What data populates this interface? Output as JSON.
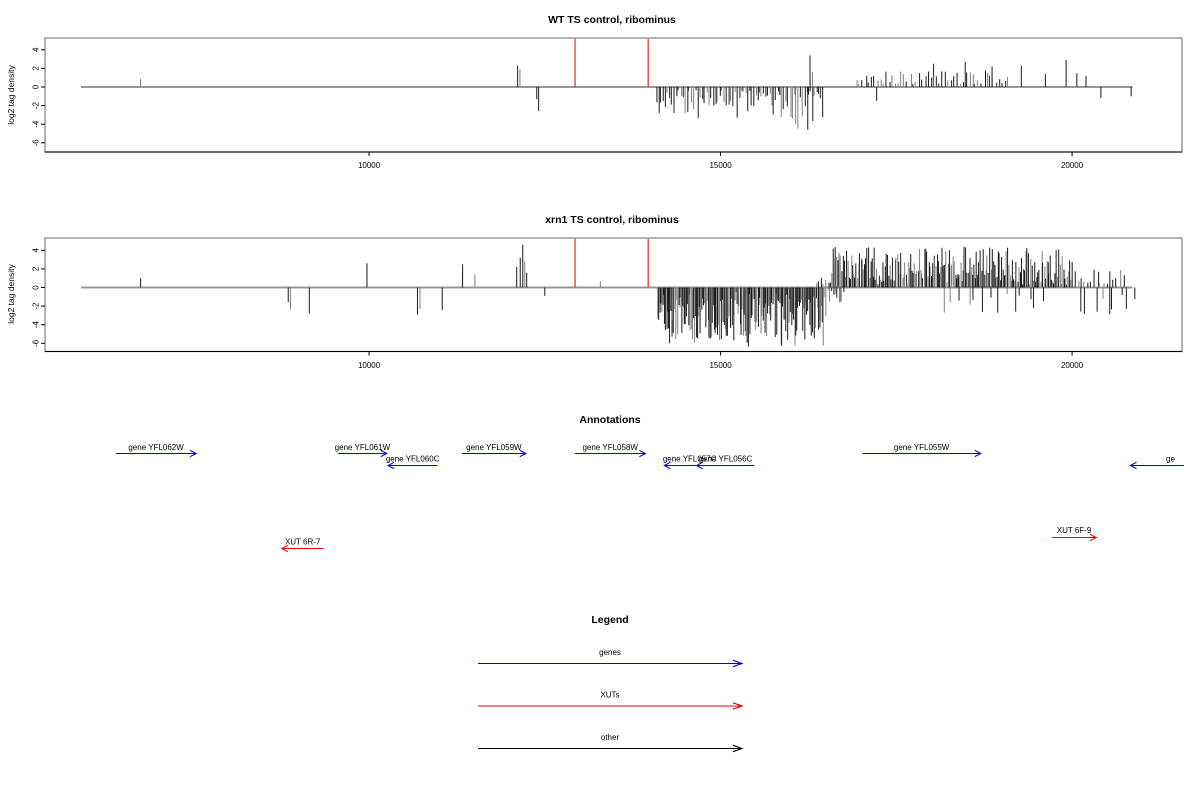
{
  "chart_data": {
    "type": "bar",
    "description": "Genome browser style strand-specific log2 tag density tracks with gene/XUT annotations",
    "colors": {
      "genes": "#0000ee",
      "xuts": "#ee0000",
      "markers": "#ee2222",
      "bars": "#1a1a1a",
      "bars_alt": "#808080",
      "baseline": "#979797"
    },
    "panels": [
      {
        "title": "WT TS control, ribominus",
        "ylabel": "log2 tag density",
        "yticks": [
          4,
          2,
          0,
          -2,
          -4,
          -6
        ],
        "xticks": [
          10000,
          15000,
          20000
        ],
        "xlim": [
          5390,
          21640
        ],
        "ylim": [
          -6.9,
          5.4
        ],
        "baseline": [
          5900,
          20860
        ],
        "marker_lines": [
          12930,
          13970
        ],
        "bars": {
          "explicit": [
            [
              6750,
              0.9,
              "g"
            ],
            [
              12113,
              2.3,
              "k"
            ],
            [
              12146,
              1.9,
              "g"
            ],
            [
              12385,
              -1.3,
              "k"
            ],
            [
              12412,
              -2.6,
              "k"
            ],
            [
              16240,
              -4.6,
              "k"
            ],
            [
              16272,
              3.4,
              "k"
            ],
            [
              16306,
              1.6,
              "g"
            ],
            [
              17220,
              -1.5,
              "k"
            ],
            [
              18030,
              2.5,
              "k"
            ],
            [
              18480,
              2.7,
              "k"
            ],
            [
              18862,
              2.2,
              "k"
            ],
            [
              19278,
              2.3,
              "k"
            ],
            [
              19620,
              1.4,
              "k"
            ],
            [
              19915,
              2.9,
              "k"
            ],
            [
              20068,
              1.5,
              "k"
            ],
            [
              20198,
              1.2,
              "k"
            ],
            [
              20410,
              -1.2,
              "k"
            ],
            [
              20840,
              -1.0,
              "k"
            ]
          ],
          "regions": [
            {
              "from": 14080,
              "to": 15310,
              "sign": -1,
              "n": 40,
              "hmin": 0.3,
              "hmax": 3.4,
              "skew": 1.3,
              "seed": 11
            },
            {
              "from": 15310,
              "to": 16470,
              "sign": -1,
              "n": 40,
              "hmin": 0.4,
              "hmax": 4.7,
              "skew": 1.5,
              "seed": 12
            },
            {
              "from": 16920,
              "to": 19110,
              "sign": 1,
              "n": 52,
              "hmin": 0.3,
              "hmax": 1.8,
              "skew": 1.2,
              "seed": 13
            }
          ]
        }
      },
      {
        "title": "xrn1 TS control, ribominus",
        "ylabel": "log2 tag density",
        "yticks": [
          4,
          2,
          0,
          -2,
          -4,
          -6
        ],
        "xticks": [
          10000,
          15000,
          20000
        ],
        "xlim": [
          5390,
          21640
        ],
        "ylim": [
          -6.9,
          5.4
        ],
        "baseline": [
          5900,
          20860
        ],
        "marker_lines": [
          12930,
          13970
        ],
        "bars": {
          "explicit": [
            [
              6750,
              1.0,
              "k"
            ],
            [
              8850,
              -1.6,
              "k"
            ],
            [
              8882,
              -2.4,
              "g"
            ],
            [
              9150,
              -2.8,
              "k"
            ],
            [
              9970,
              2.6,
              "k"
            ],
            [
              10688,
              -2.9,
              "k"
            ],
            [
              10724,
              -2.3,
              "g"
            ],
            [
              11040,
              -2.4,
              "k"
            ],
            [
              11330,
              2.5,
              "k"
            ],
            [
              11505,
              1.4,
              "g"
            ],
            [
              12100,
              2.2,
              "k"
            ],
            [
              12150,
              3.2,
              "k"
            ],
            [
              12186,
              4.6,
              "k"
            ],
            [
              12214,
              2.8,
              "g"
            ],
            [
              12242,
              1.6,
              "k"
            ],
            [
              12500,
              -0.9,
              "k"
            ],
            [
              13290,
              0.7,
              "g"
            ]
          ],
          "regions": [
            {
              "from": 14100,
              "to": 16500,
              "sign": -1,
              "n": 170,
              "hmin": 0.4,
              "hmax": 6.4,
              "skew": 0.9,
              "seed": 21
            },
            {
              "from": 16350,
              "to": 16560,
              "sign": 1,
              "n": 6,
              "hmin": 0.3,
              "hmax": 1.5,
              "skew": 1.2,
              "seed": 22
            },
            {
              "from": 16520,
              "to": 16760,
              "sign": -1,
              "n": 9,
              "hmin": 0.3,
              "hmax": 1.8,
              "skew": 1.2,
              "seed": 27
            },
            {
              "from": 16560,
              "to": 20010,
              "sign": 1,
              "n": 200,
              "hmin": 0.3,
              "hmax": 4.4,
              "skew": 1.05,
              "seed": 23
            },
            {
              "from": 18150,
              "to": 19660,
              "sign": -1,
              "n": 14,
              "hmin": 0.5,
              "hmax": 2.8,
              "skew": 1.2,
              "seed": 24
            },
            {
              "from": 20020,
              "to": 20750,
              "sign": 1,
              "n": 16,
              "hmin": 0.3,
              "hmax": 2.1,
              "skew": 1.2,
              "seed": 25
            },
            {
              "from": 20080,
              "to": 20940,
              "sign": -1,
              "n": 9,
              "hmin": 0.7,
              "hmax": 3.4,
              "skew": 1.2,
              "seed": 26
            }
          ]
        }
      }
    ],
    "annotations": {
      "title": "Annotations",
      "genes": [
        {
          "label": "gene YFL062W",
          "from": 6400,
          "to": 7540,
          "strand": "+",
          "row": 0
        },
        {
          "label": "gene YFL061W",
          "from": 9560,
          "to": 10250,
          "strand": "+",
          "row": 0
        },
        {
          "label": "gene YFL060C",
          "from": 10270,
          "to": 10970,
          "strand": "-",
          "row": 1
        },
        {
          "label": "gene YFL059W",
          "from": 11320,
          "to": 12230,
          "strand": "+",
          "row": 0
        },
        {
          "label": "gene YFL058W",
          "from": 12930,
          "to": 13930,
          "strand": "+",
          "row": 0
        },
        {
          "label": "gene YFL057C",
          "from": 14200,
          "to": 14920,
          "strand": "-",
          "row": 1
        },
        {
          "label": "gene YFL056C",
          "from": 14660,
          "to": 15480,
          "strand": "-",
          "row": 1
        },
        {
          "label": "gene YFL055W",
          "from": 17020,
          "to": 18700,
          "strand": "+",
          "row": 0
        },
        {
          "label": "ge",
          "from": 20830,
          "to": 21590,
          "strand": "-",
          "row": 1,
          "label_at": 21400
        }
      ],
      "xuts": [
        {
          "label": "XUT 6R-7",
          "from": 8760,
          "to": 9350,
          "strand": "-",
          "row": 1
        },
        {
          "label": "XUT 6F-9",
          "from": 19715,
          "to": 20340,
          "strand": "+",
          "row": 0
        }
      ]
    },
    "legend": {
      "title": "Legend",
      "entries": [
        {
          "label": "genes",
          "color": "#0000ee"
        },
        {
          "label": "XUTs",
          "color": "#ee0000"
        },
        {
          "label": "other",
          "color": "#000000"
        }
      ]
    }
  }
}
